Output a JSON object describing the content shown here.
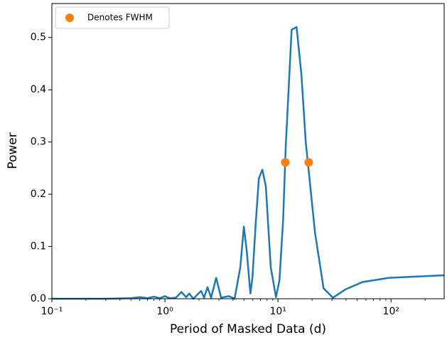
{
  "chart_data": {
    "type": "line",
    "xlabel": "Period of Masked Data (d)",
    "ylabel": "Power",
    "log_x": true,
    "xlim": [
      0.1,
      295
    ],
    "ylim": [
      0,
      0.565
    ],
    "xticks": [
      {
        "value": 0.1,
        "label": "10⁻¹"
      },
      {
        "value": 1,
        "label": "10⁰"
      },
      {
        "value": 10,
        "label": "10¹"
      },
      {
        "value": 100,
        "label": "10²"
      }
    ],
    "xminorticks": [
      0.2,
      0.3,
      0.4,
      0.5,
      0.6,
      0.7,
      0.8,
      0.9,
      2,
      3,
      4,
      5,
      6,
      7,
      8,
      9,
      20,
      30,
      40,
      50,
      60,
      70,
      80,
      90,
      200
    ],
    "yticks": [
      {
        "value": 0,
        "label": "0.0"
      },
      0.1,
      0.2,
      0.3,
      0.4,
      0.5
    ],
    "legend": "upper left",
    "series": [
      {
        "color": "#1f77b4",
        "x": [
          0.1,
          0.3,
          0.5,
          0.6,
          0.7,
          0.8,
          0.9,
          1.0,
          1.1,
          1.25,
          1.4,
          1.54,
          1.64,
          1.78,
          2.09,
          2.22,
          2.38,
          2.56,
          2.84,
          3.14,
          3.68,
          4.13,
          4.64,
          4.99,
          5.3,
          5.7,
          5.94,
          6.38,
          6.77,
          7.27,
          7.81,
          8.63,
          9.6,
          10.3,
          11.1,
          11.7,
          13.2,
          14.6,
          16.1,
          17.6,
          21.3,
          25.3,
          30.6,
          39.6,
          56,
          95.6,
          295
        ],
        "values": [
          0,
          0,
          0.001,
          0.003,
          0.001,
          0.004,
          0.001,
          0.005,
          0.001,
          0.002,
          0.013,
          0.003,
          0.01,
          0,
          0.015,
          0.002,
          0.022,
          0.002,
          0.04,
          0.002,
          0.005,
          0,
          0.06,
          0.138,
          0.09,
          0.01,
          0.04,
          0.15,
          0.23,
          0.247,
          0.215,
          0.06,
          0.003,
          0.035,
          0.15,
          0.29,
          0.515,
          0.52,
          0.43,
          0.3,
          0.125,
          0.02,
          0.002,
          0.018,
          0.032,
          0.04,
          0.045
        ]
      },
      {
        "name": "Denotes FWHM",
        "type": "scatter",
        "color": "#ff7f0e",
        "x": [
          11.6,
          18.7
        ],
        "values": [
          0.261,
          0.261
        ]
      }
    ]
  }
}
